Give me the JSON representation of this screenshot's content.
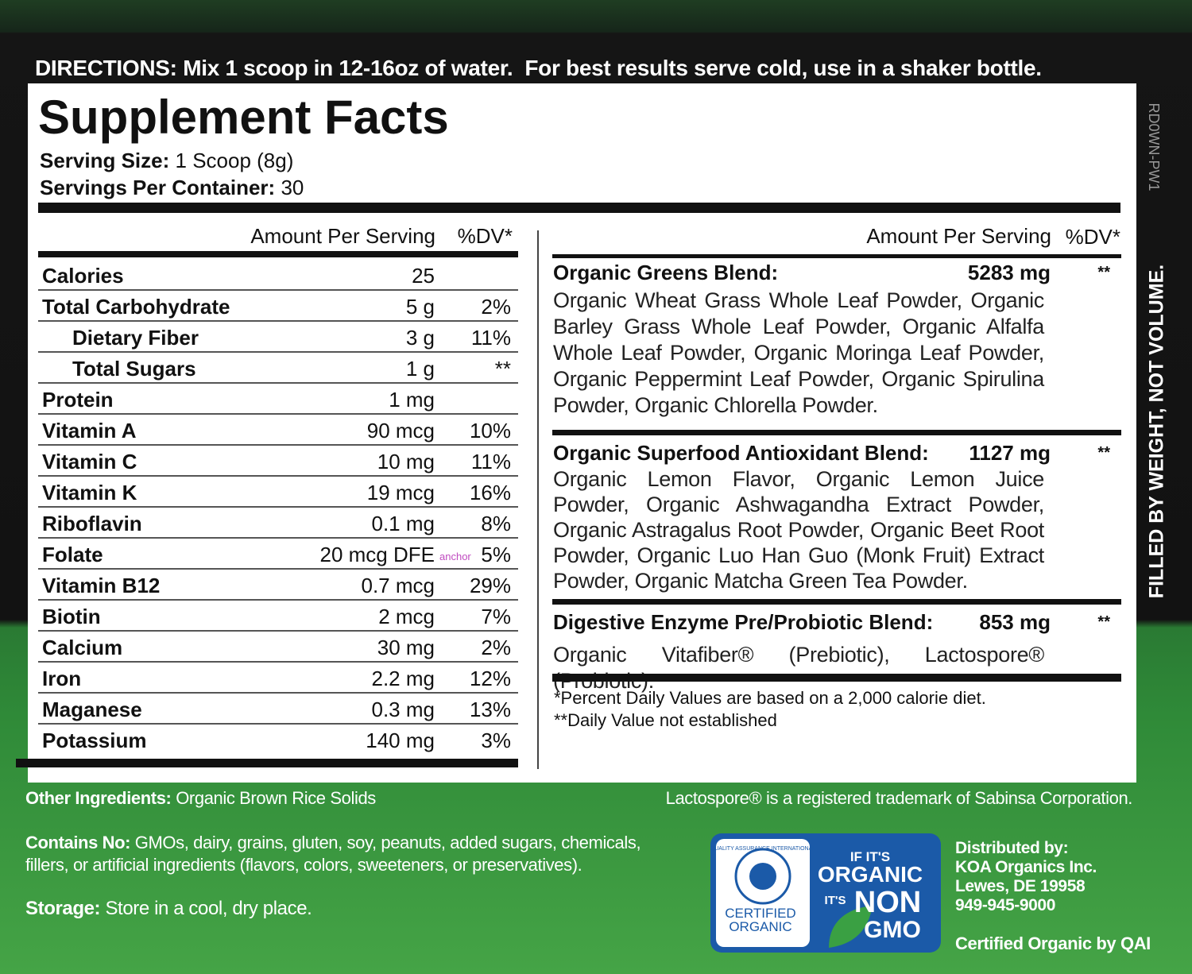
{
  "directions": {
    "label": "DIRECTIONS:",
    "text": "Mix 1 scoop in 12-16oz of water.  For best results serve cold, use in a shaker bottle."
  },
  "panel": {
    "title": "Supplement Facts",
    "serving_size": {
      "label": "Serving Size:",
      "value": "1 Scoop (8g)"
    },
    "servings_per_container": {
      "label": "Servings Per Container:",
      "value": "30"
    },
    "code": "RD0WN-PW1"
  },
  "left_table": {
    "headers": [
      "Amount Per Serving",
      "%DV*"
    ],
    "rows": [
      [
        "Calories",
        "25",
        null
      ],
      [
        "Total Carbohydrate",
        "5 g",
        "2%"
      ],
      [
        "Dietary Fiber",
        "3 g",
        "11%"
      ],
      [
        "Total Sugars",
        "1 g",
        "**"
      ],
      [
        "Protein",
        "1 mg",
        null
      ],
      [
        "Vitamin A",
        "90 mcg",
        "10%"
      ],
      [
        "Vitamin C",
        "10 mg",
        "11%"
      ],
      [
        "Vitamin K",
        "19 mcg",
        "16%"
      ],
      [
        "Riboflavin",
        "0.1 mg",
        "8%"
      ],
      [
        "Folate",
        "20 mcg DFE",
        "5%"
      ],
      [
        "Vitamin B12",
        "0.7 mcg",
        "29%"
      ],
      [
        "Biotin",
        "2 mcg",
        "7%"
      ],
      [
        "Calcium",
        "30 mg",
        "2%"
      ],
      [
        "Iron",
        "2.2 mg",
        "12%"
      ],
      [
        "Maganese",
        "0.3 mg",
        "13%"
      ],
      [
        "Potassium",
        "140 mg",
        "3%"
      ]
    ],
    "stray_label": "anchor"
  },
  "right_table": {
    "headers": [
      "Amount Per Serving",
      "%DV*"
    ],
    "blends": [
      {
        "name": "Organic Greens Blend:",
        "amount": "5283 mg",
        "dv": "**",
        "ingredients": "Organic Wheat Grass Whole Leaf Powder, Organic Barley Grass Whole Leaf Powder, Organic Alfalfa Whole Leaf Powder, Organic Moringa Leaf Powder, Organic Peppermint Leaf Powder, Organic Spirulina Powder, Organic Chlorella Powder."
      },
      {
        "name": "Organic Superfood Antioxidant Blend:",
        "amount": "1127 mg",
        "dv": "**",
        "ingredients": "Organic Lemon Flavor, Organic Lemon Juice Powder, Organic Ashwagandha Extract Powder, Organic Astragalus Root Powder, Organic Beet Root Powder, Organic Luo Han Guo (Monk Fruit) Extract Powder, Organic Matcha Green Tea Powder."
      },
      {
        "name": "Digestive Enzyme Pre/Probiotic Blend:",
        "amount": "853 mg",
        "dv": "**",
        "ingredients": "Organic Vitafiber® (Prebiotic), Lactospore® (Probiotic)."
      }
    ],
    "footnotes": [
      "*Percent Daily Values are based on a 2,000 calorie diet.",
      "**Daily Value not established"
    ]
  },
  "side_note": "FILLED BY WEIGHT, NOT VOLUME.",
  "bottom": {
    "other_ingredients": {
      "label": "Other Ingredients:",
      "text": "Organic Brown Rice Solids"
    },
    "trademark": "Lactospore® is a registered trademark of Sabinsa Corporation.",
    "contains_no": {
      "label": "Contains No:",
      "lines": [
        "GMOs, dairy, grains, gluten, soy, peanuts, added sugars, chemicals,",
        "fillers, or artificial ingredients (flavors, colors, sweeteners, or preservatives)."
      ]
    },
    "storage": {
      "label": "Storage:",
      "text": "Store in a cool, dry place."
    },
    "distributor": [
      "Distributed by:",
      "KOA Organics Inc.",
      "Lewes, DE 19958",
      "949-945-9000"
    ],
    "certified_by": "Certified Organic by QAI"
  },
  "logo": {
    "seal": "QUALITY ASSURANCE INTERNATIONAL",
    "certified": [
      "CERTIFIED",
      "ORGANIC"
    ],
    "lines": [
      "IF IT'S",
      "ORGANIC",
      "IT'S",
      "NON",
      "GMO"
    ]
  }
}
